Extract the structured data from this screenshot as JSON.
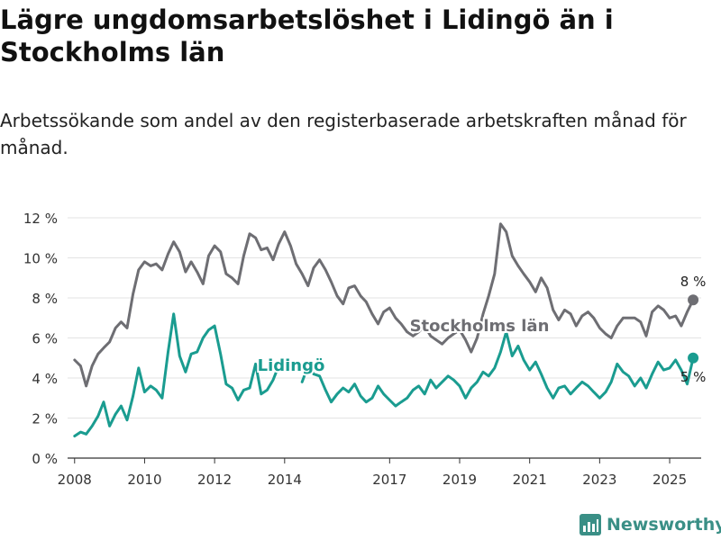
{
  "title": "Lägre ungdomsarbetslöshet i Lidingö än i Stockholms län",
  "subtitle": "Arbetssökande som andel av den registerbaserade arbetskraften månad för månad.",
  "brand": "Newsworthy",
  "colors": {
    "stockholm": "#6e6e73",
    "lidingo": "#1a9c90",
    "grid": "#e3e3e3",
    "axis": "#333333"
  },
  "chart_data": {
    "type": "line",
    "xlim": [
      2007.8,
      2025.9
    ],
    "ylim": [
      0,
      12
    ],
    "x_ticks": [
      {
        "value": 2008,
        "label": "2008"
      },
      {
        "value": 2010,
        "label": "2010"
      },
      {
        "value": 2012,
        "label": "2012"
      },
      {
        "value": 2014,
        "label": "2014"
      },
      {
        "value": 2017,
        "label": "2017"
      },
      {
        "value": 2019,
        "label": "2019"
      },
      {
        "value": 2021,
        "label": "2021"
      },
      {
        "value": 2023,
        "label": "2023"
      },
      {
        "value": 2025,
        "label": "2025"
      }
    ],
    "y_ticks": [
      {
        "value": 0,
        "label": "0 %"
      },
      {
        "value": 2,
        "label": "2 %"
      },
      {
        "value": 4,
        "label": "4 %"
      },
      {
        "value": 6,
        "label": "6 %"
      },
      {
        "value": 8,
        "label": "8 %"
      },
      {
        "value": 10,
        "label": "10 %"
      },
      {
        "value": 12,
        "label": "12 %"
      }
    ],
    "series": [
      {
        "name": "Stockholms län",
        "color": "#6e6e73",
        "end_label": "8 %",
        "points": [
          [
            2008.0,
            4.9
          ],
          [
            2008.17,
            4.6
          ],
          [
            2008.33,
            3.6
          ],
          [
            2008.5,
            4.6
          ],
          [
            2008.67,
            5.2
          ],
          [
            2008.83,
            5.5
          ],
          [
            2009.0,
            5.8
          ],
          [
            2009.17,
            6.5
          ],
          [
            2009.33,
            6.8
          ],
          [
            2009.5,
            6.5
          ],
          [
            2009.67,
            8.2
          ],
          [
            2009.83,
            9.4
          ],
          [
            2010.0,
            9.8
          ],
          [
            2010.17,
            9.6
          ],
          [
            2010.33,
            9.7
          ],
          [
            2010.5,
            9.4
          ],
          [
            2010.67,
            10.2
          ],
          [
            2010.83,
            10.8
          ],
          [
            2011.0,
            10.3
          ],
          [
            2011.17,
            9.3
          ],
          [
            2011.33,
            9.8
          ],
          [
            2011.5,
            9.3
          ],
          [
            2011.67,
            8.7
          ],
          [
            2011.83,
            10.1
          ],
          [
            2012.0,
            10.6
          ],
          [
            2012.17,
            10.3
          ],
          [
            2012.33,
            9.2
          ],
          [
            2012.5,
            9.0
          ],
          [
            2012.67,
            8.7
          ],
          [
            2012.83,
            10.1
          ],
          [
            2013.0,
            11.2
          ],
          [
            2013.17,
            11.0
          ],
          [
            2013.33,
            10.4
          ],
          [
            2013.5,
            10.5
          ],
          [
            2013.67,
            9.9
          ],
          [
            2013.83,
            10.7
          ],
          [
            2014.0,
            11.3
          ],
          [
            2014.17,
            10.6
          ],
          [
            2014.33,
            9.7
          ],
          [
            2014.5,
            9.2
          ],
          [
            2014.67,
            8.6
          ],
          [
            2014.83,
            9.5
          ],
          [
            2015.0,
            9.9
          ],
          [
            2015.17,
            9.4
          ],
          [
            2015.33,
            8.8
          ],
          [
            2015.5,
            8.1
          ],
          [
            2015.67,
            7.7
          ],
          [
            2015.83,
            8.5
          ],
          [
            2016.0,
            8.6
          ],
          [
            2016.17,
            8.1
          ],
          [
            2016.33,
            7.8
          ],
          [
            2016.5,
            7.2
          ],
          [
            2016.67,
            6.7
          ],
          [
            2016.83,
            7.3
          ],
          [
            2017.0,
            7.5
          ],
          [
            2017.17,
            7.0
          ],
          [
            2017.33,
            6.7
          ],
          [
            2017.5,
            6.3
          ],
          [
            2017.67,
            6.1
          ],
          [
            2017.83,
            6.3
          ],
          [
            2018.0,
            6.6
          ],
          [
            2018.17,
            6.1
          ],
          [
            2018.33,
            5.9
          ],
          [
            2018.5,
            5.7
          ],
          [
            2018.67,
            6.0
          ],
          [
            2018.83,
            6.2
          ],
          [
            2019.0,
            6.4
          ],
          [
            2019.17,
            5.9
          ],
          [
            2019.33,
            5.3
          ],
          [
            2019.5,
            6.0
          ],
          [
            2019.67,
            7.2
          ],
          [
            2019.83,
            8.1
          ],
          [
            2020.0,
            9.2
          ],
          [
            2020.17,
            11.7
          ],
          [
            2020.33,
            11.3
          ],
          [
            2020.5,
            10.1
          ],
          [
            2020.67,
            9.6
          ],
          [
            2020.83,
            9.2
          ],
          [
            2021.0,
            8.8
          ],
          [
            2021.17,
            8.3
          ],
          [
            2021.33,
            9.0
          ],
          [
            2021.5,
            8.5
          ],
          [
            2021.67,
            7.4
          ],
          [
            2021.83,
            6.9
          ],
          [
            2022.0,
            7.4
          ],
          [
            2022.17,
            7.2
          ],
          [
            2022.33,
            6.6
          ],
          [
            2022.5,
            7.1
          ],
          [
            2022.67,
            7.3
          ],
          [
            2022.83,
            7.0
          ],
          [
            2023.0,
            6.5
          ],
          [
            2023.17,
            6.2
          ],
          [
            2023.33,
            6.0
          ],
          [
            2023.5,
            6.6
          ],
          [
            2023.67,
            7.0
          ],
          [
            2023.83,
            7.0
          ],
          [
            2024.0,
            7.0
          ],
          [
            2024.17,
            6.8
          ],
          [
            2024.33,
            6.1
          ],
          [
            2024.5,
            7.3
          ],
          [
            2024.67,
            7.6
          ],
          [
            2024.83,
            7.4
          ],
          [
            2025.0,
            7.0
          ],
          [
            2025.17,
            7.1
          ],
          [
            2025.33,
            6.6
          ],
          [
            2025.5,
            7.3
          ],
          [
            2025.67,
            7.9
          ]
        ]
      },
      {
        "name": "Lidingö",
        "color": "#1a9c90",
        "end_label": "5 %",
        "points": [
          [
            2008.0,
            1.1
          ],
          [
            2008.17,
            1.3
          ],
          [
            2008.33,
            1.2
          ],
          [
            2008.5,
            1.6
          ],
          [
            2008.67,
            2.1
          ],
          [
            2008.83,
            2.8
          ],
          [
            2009.0,
            1.6
          ],
          [
            2009.17,
            2.2
          ],
          [
            2009.33,
            2.6
          ],
          [
            2009.5,
            1.9
          ],
          [
            2009.67,
            3.1
          ],
          [
            2009.83,
            4.5
          ],
          [
            2010.0,
            3.3
          ],
          [
            2010.17,
            3.6
          ],
          [
            2010.33,
            3.4
          ],
          [
            2010.5,
            3.0
          ],
          [
            2010.67,
            5.3
          ],
          [
            2010.83,
            7.2
          ],
          [
            2011.0,
            5.1
          ],
          [
            2011.17,
            4.3
          ],
          [
            2011.33,
            5.2
          ],
          [
            2011.5,
            5.3
          ],
          [
            2011.67,
            6.0
          ],
          [
            2011.83,
            6.4
          ],
          [
            2012.0,
            6.6
          ],
          [
            2012.17,
            5.2
          ],
          [
            2012.33,
            3.7
          ],
          [
            2012.5,
            3.5
          ],
          [
            2012.67,
            2.9
          ],
          [
            2012.83,
            3.4
          ],
          [
            2013.0,
            3.5
          ],
          [
            2013.17,
            4.7
          ],
          [
            2013.33,
            3.2
          ],
          [
            2013.5,
            3.4
          ],
          [
            2013.67,
            3.9
          ],
          [
            2013.83,
            4.6
          ],
          [
            2014.5,
            3.8
          ],
          [
            2014.67,
            4.6
          ],
          [
            2014.83,
            4.2
          ],
          [
            2015.0,
            4.1
          ],
          [
            2015.17,
            3.4
          ],
          [
            2015.33,
            2.8
          ],
          [
            2015.5,
            3.2
          ],
          [
            2015.67,
            3.5
          ],
          [
            2015.83,
            3.3
          ],
          [
            2016.0,
            3.7
          ],
          [
            2016.17,
            3.1
          ],
          [
            2016.33,
            2.8
          ],
          [
            2016.5,
            3.0
          ],
          [
            2016.67,
            3.6
          ],
          [
            2016.83,
            3.2
          ],
          [
            2017.0,
            2.9
          ],
          [
            2017.17,
            2.6
          ],
          [
            2017.33,
            2.8
          ],
          [
            2017.5,
            3.0
          ],
          [
            2017.67,
            3.4
          ],
          [
            2017.83,
            3.6
          ],
          [
            2018.0,
            3.2
          ],
          [
            2018.17,
            3.9
          ],
          [
            2018.33,
            3.5
          ],
          [
            2018.5,
            3.8
          ],
          [
            2018.67,
            4.1
          ],
          [
            2018.83,
            3.9
          ],
          [
            2019.0,
            3.6
          ],
          [
            2019.17,
            3.0
          ],
          [
            2019.33,
            3.5
          ],
          [
            2019.5,
            3.8
          ],
          [
            2019.67,
            4.3
          ],
          [
            2019.83,
            4.1
          ],
          [
            2020.0,
            4.5
          ],
          [
            2020.17,
            5.3
          ],
          [
            2020.33,
            6.3
          ],
          [
            2020.5,
            5.1
          ],
          [
            2020.67,
            5.6
          ],
          [
            2020.83,
            4.9
          ],
          [
            2021.0,
            4.4
          ],
          [
            2021.17,
            4.8
          ],
          [
            2021.33,
            4.2
          ],
          [
            2021.5,
            3.5
          ],
          [
            2021.67,
            3.0
          ],
          [
            2021.83,
            3.5
          ],
          [
            2022.0,
            3.6
          ],
          [
            2022.17,
            3.2
          ],
          [
            2022.33,
            3.5
          ],
          [
            2022.5,
            3.8
          ],
          [
            2022.67,
            3.6
          ],
          [
            2022.83,
            3.3
          ],
          [
            2023.0,
            3.0
          ],
          [
            2023.17,
            3.3
          ],
          [
            2023.33,
            3.8
          ],
          [
            2023.5,
            4.7
          ],
          [
            2023.67,
            4.3
          ],
          [
            2023.83,
            4.1
          ],
          [
            2024.0,
            3.6
          ],
          [
            2024.17,
            4.0
          ],
          [
            2024.33,
            3.5
          ],
          [
            2024.5,
            4.2
          ],
          [
            2024.67,
            4.8
          ],
          [
            2024.83,
            4.4
          ],
          [
            2025.0,
            4.5
          ],
          [
            2025.17,
            4.9
          ],
          [
            2025.33,
            4.4
          ],
          [
            2025.5,
            3.7
          ],
          [
            2025.67,
            5.0
          ]
        ]
      }
    ],
    "series_labels": [
      {
        "series": "Stockholms län",
        "text": "Stockholms län"
      },
      {
        "series": "Lidingö",
        "text": "Lidingö"
      }
    ]
  }
}
